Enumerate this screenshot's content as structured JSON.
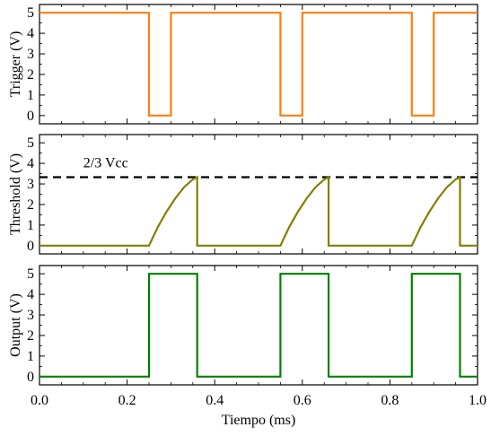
{
  "chart_data": {
    "type": "line",
    "x_axis": {
      "label": "Tiempo (ms)",
      "range": [
        0.0,
        1.0
      ],
      "ticks": [
        0.0,
        0.2,
        0.4,
        0.6,
        0.8,
        1.0
      ],
      "tick_labels": [
        "0.0",
        "0.2",
        "0.4",
        "0.6",
        "0.8",
        "1.0"
      ]
    },
    "panels": [
      {
        "id": "trigger",
        "ylabel": "Trigger (V)",
        "ylim": [
          -0.4,
          5.4
        ],
        "yticks": [
          0,
          1,
          2,
          3,
          4,
          5
        ],
        "color": "#ff7f0e",
        "series": {
          "x": [
            0.0,
            0.25,
            0.25,
            0.3,
            0.3,
            0.55,
            0.55,
            0.6,
            0.6,
            0.85,
            0.85,
            0.9,
            0.9,
            1.0
          ],
          "y": [
            5,
            5,
            0,
            0,
            5,
            5,
            0,
            0,
            5,
            5,
            0,
            0,
            5,
            5
          ]
        }
      },
      {
        "id": "threshold",
        "ylabel": "Threshold (V)",
        "ylim": [
          -0.4,
          5.4
        ],
        "yticks": [
          0,
          1,
          2,
          3,
          4,
          5
        ],
        "color": "#808000",
        "series": {
          "x": [
            0.0,
            0.25,
            0.27,
            0.29,
            0.31,
            0.33,
            0.35,
            0.36,
            0.36,
            0.55,
            0.57,
            0.59,
            0.61,
            0.63,
            0.65,
            0.66,
            0.66,
            0.85,
            0.87,
            0.89,
            0.91,
            0.93,
            0.95,
            0.96,
            0.96,
            1.0
          ],
          "y": [
            0,
            0,
            0.9,
            1.65,
            2.3,
            2.84,
            3.22,
            3.33,
            0,
            0,
            0.9,
            1.65,
            2.3,
            2.84,
            3.22,
            3.33,
            0,
            0,
            0.9,
            1.65,
            2.3,
            2.84,
            3.22,
            3.33,
            0,
            0
          ]
        },
        "reference_line": {
          "y": 3.33,
          "style": "dashed",
          "color": "#000000",
          "label": "2/3 Vcc"
        }
      },
      {
        "id": "output",
        "ylabel": "Output (V)",
        "ylim": [
          -0.4,
          5.4
        ],
        "yticks": [
          0,
          1,
          2,
          3,
          4,
          5
        ],
        "color": "#008000",
        "series": {
          "x": [
            0.0,
            0.25,
            0.25,
            0.36,
            0.36,
            0.55,
            0.55,
            0.66,
            0.66,
            0.85,
            0.85,
            0.96,
            0.96,
            1.0
          ],
          "y": [
            0,
            0,
            5,
            5,
            0,
            0,
            5,
            5,
            0,
            0,
            5,
            5,
            0,
            0
          ]
        }
      }
    ],
    "grid": false
  }
}
